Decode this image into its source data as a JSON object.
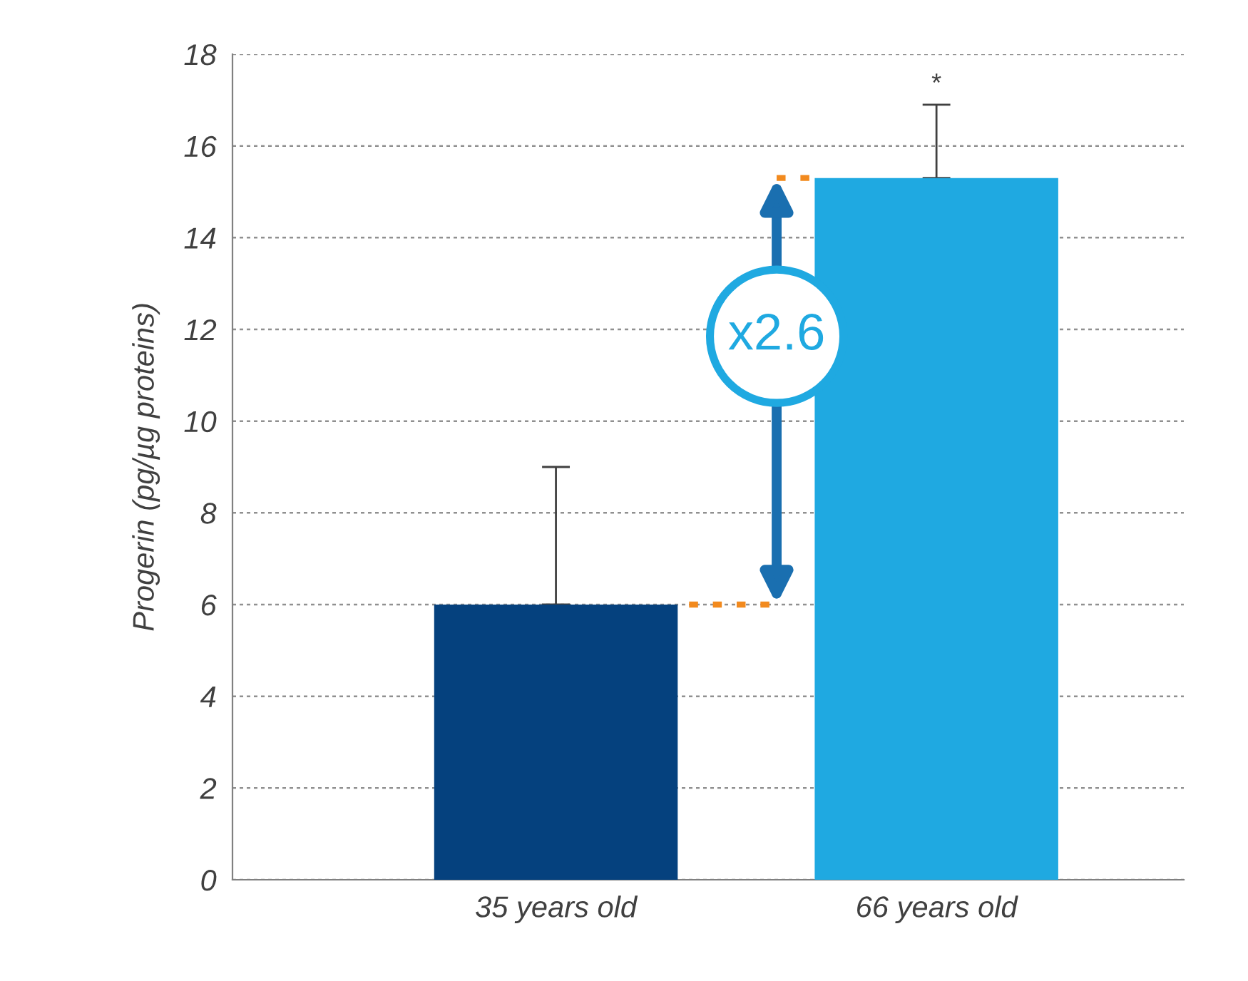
{
  "chart_data": {
    "type": "bar",
    "ylabel": "Progerin (pg/µg proteins)",
    "categories": [
      "35 years old",
      "66 years old"
    ],
    "values": [
      6.0,
      15.3
    ],
    "colors": [
      "#05417e",
      "#1fa9e1"
    ],
    "errors": [
      [
        6.0,
        9.0
      ],
      [
        15.3,
        16.9
      ]
    ],
    "ylim": [
      0,
      18
    ],
    "yticks": [
      0,
      2,
      4,
      6,
      8,
      10,
      12,
      14,
      16,
      18
    ],
    "grid": "y",
    "annotations": [
      {
        "text": "*",
        "x": "66 years old",
        "y": 16.9
      },
      "x2.6"
    ]
  }
}
